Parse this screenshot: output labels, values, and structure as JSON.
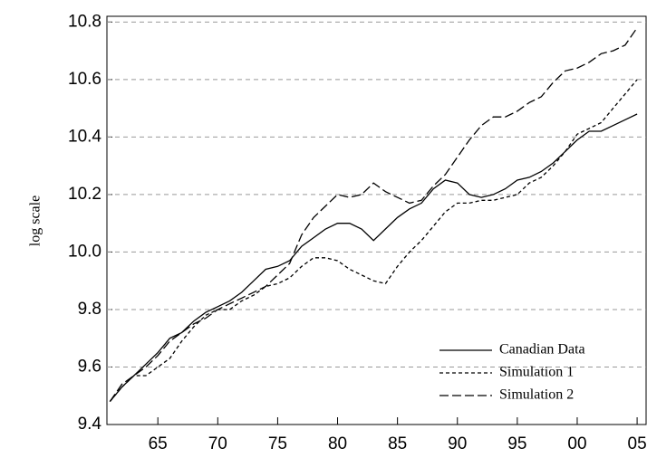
{
  "chart_data": {
    "type": "line",
    "y_label": "log scale",
    "x": [
      1961,
      1962,
      1963,
      1964,
      1965,
      1966,
      1967,
      1968,
      1969,
      1970,
      1971,
      1972,
      1973,
      1974,
      1975,
      1976,
      1977,
      1978,
      1979,
      1980,
      1981,
      1982,
      1983,
      1984,
      1985,
      1986,
      1987,
      1988,
      1989,
      1990,
      1991,
      1992,
      1993,
      1994,
      1995,
      1996,
      1997,
      1998,
      1999,
      2000,
      2001,
      2002,
      2003,
      2004,
      2005
    ],
    "series": [
      {
        "name": "Canadian Data",
        "color": "#000000",
        "dash": "none",
        "values": [
          9.48,
          9.53,
          9.57,
          9.61,
          9.65,
          9.7,
          9.72,
          9.76,
          9.79,
          9.81,
          9.83,
          9.86,
          9.9,
          9.94,
          9.95,
          9.97,
          10.02,
          10.05,
          10.08,
          10.1,
          10.1,
          10.08,
          10.04,
          10.08,
          10.12,
          10.15,
          10.17,
          10.22,
          10.25,
          10.24,
          10.2,
          10.19,
          10.2,
          10.22,
          10.25,
          10.26,
          10.28,
          10.31,
          10.35,
          10.39,
          10.42,
          10.42,
          10.44,
          10.46,
          10.48
        ]
      },
      {
        "name": "Simulation 1",
        "color": "#000000",
        "dash": "4 3",
        "values": [
          9.48,
          9.53,
          9.57,
          9.57,
          9.6,
          9.63,
          9.69,
          9.74,
          9.78,
          9.8,
          9.8,
          9.83,
          9.85,
          9.88,
          9.89,
          9.91,
          9.95,
          9.98,
          9.98,
          9.97,
          9.94,
          9.92,
          9.9,
          9.89,
          9.95,
          10.0,
          10.04,
          10.09,
          10.14,
          10.17,
          10.17,
          10.18,
          10.18,
          10.19,
          10.2,
          10.24,
          10.26,
          10.3,
          10.35,
          10.41,
          10.43,
          10.45,
          10.5,
          10.55,
          10.6
        ]
      },
      {
        "name": "Simulation 2",
        "color": "#000000",
        "dash": "10 4",
        "values": [
          9.48,
          9.54,
          9.57,
          9.6,
          9.64,
          9.69,
          9.72,
          9.75,
          9.77,
          9.8,
          9.82,
          9.84,
          9.86,
          9.88,
          9.92,
          9.96,
          10.06,
          10.12,
          10.16,
          10.2,
          10.19,
          10.2,
          10.24,
          10.21,
          10.19,
          10.17,
          10.18,
          10.23,
          10.27,
          10.33,
          10.39,
          10.44,
          10.47,
          10.47,
          10.49,
          10.52,
          10.54,
          10.59,
          10.63,
          10.64,
          10.66,
          10.69,
          10.7,
          10.72,
          10.78
        ]
      }
    ],
    "xlim": [
      1960.75,
      2005.75
    ],
    "xticks": [
      {
        "value": 1965,
        "label": "65"
      },
      {
        "value": 1970,
        "label": "70"
      },
      {
        "value": 1975,
        "label": "75"
      },
      {
        "value": 1980,
        "label": "80"
      },
      {
        "value": 1985,
        "label": "85"
      },
      {
        "value": 1990,
        "label": "90"
      },
      {
        "value": 1995,
        "label": "95"
      },
      {
        "value": 2000,
        "label": "00"
      },
      {
        "value": 2005,
        "label": "05"
      }
    ],
    "ylim": [
      9.4,
      10.82
    ],
    "yticks": [
      9.4,
      9.6,
      9.8,
      {
        "value": 10,
        "label": "10.0"
      },
      10.2,
      10.4,
      10.6,
      10.8
    ],
    "grid": true,
    "legend": "lower right"
  }
}
